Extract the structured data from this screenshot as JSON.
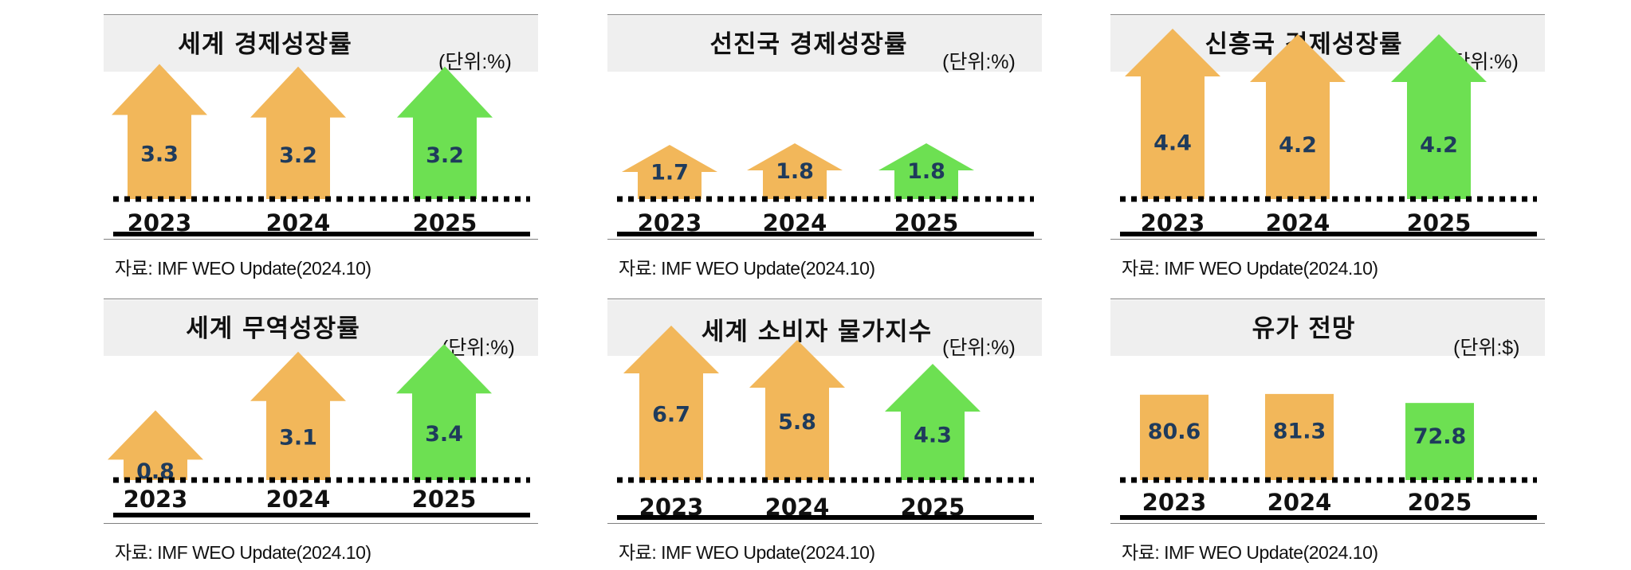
{
  "colors": {
    "orange": "#f2b75a",
    "green": "#6de052",
    "value_text": "#1f3b5c",
    "baseline": "#000000",
    "title_band": "#efefef"
  },
  "source_text": "자료: IMF WEO Update(2024.10)",
  "chart_data": [
    {
      "type": "bar",
      "shape": "arrow",
      "title": "세계 경제성장률",
      "unit": "(단위:%)",
      "categories": [
        "2023",
        "2024",
        "2025"
      ],
      "values": [
        3.3,
        3.2,
        3.2
      ],
      "colors": [
        "orange",
        "orange",
        "green"
      ]
    },
    {
      "type": "bar",
      "shape": "arrow",
      "title": "선진국 경제성장률",
      "unit": "(단위:%)",
      "categories": [
        "2023",
        "2024",
        "2025"
      ],
      "values": [
        1.7,
        1.8,
        1.8
      ],
      "colors": [
        "orange",
        "orange",
        "green"
      ]
    },
    {
      "type": "bar",
      "shape": "arrow",
      "title": "신흥국 경제성장률",
      "unit": "(단위:%)",
      "categories": [
        "2023",
        "2024",
        "2025"
      ],
      "values": [
        4.4,
        4.2,
        4.2
      ],
      "colors": [
        "orange",
        "orange",
        "green"
      ]
    },
    {
      "type": "bar",
      "shape": "arrow",
      "title": "세계 무역성장률",
      "unit": "(단위:%)",
      "categories": [
        "2023",
        "2024",
        "2025"
      ],
      "values": [
        0.8,
        3.1,
        3.4
      ],
      "colors": [
        "orange",
        "orange",
        "green"
      ]
    },
    {
      "type": "bar",
      "shape": "arrow",
      "title": "세계 소비자 물가지수",
      "unit": "(단위:%)",
      "categories": [
        "2023",
        "2024",
        "2025"
      ],
      "values": [
        6.7,
        5.8,
        4.3
      ],
      "colors": [
        "orange",
        "orange",
        "green"
      ]
    },
    {
      "type": "bar",
      "shape": "rect",
      "title": "유가 전망",
      "unit": "(단위:$)",
      "categories": [
        "2023",
        "2024",
        "2025"
      ],
      "values": [
        80.6,
        81.3,
        72.8
      ],
      "colors": [
        "orange",
        "orange",
        "green"
      ]
    }
  ]
}
